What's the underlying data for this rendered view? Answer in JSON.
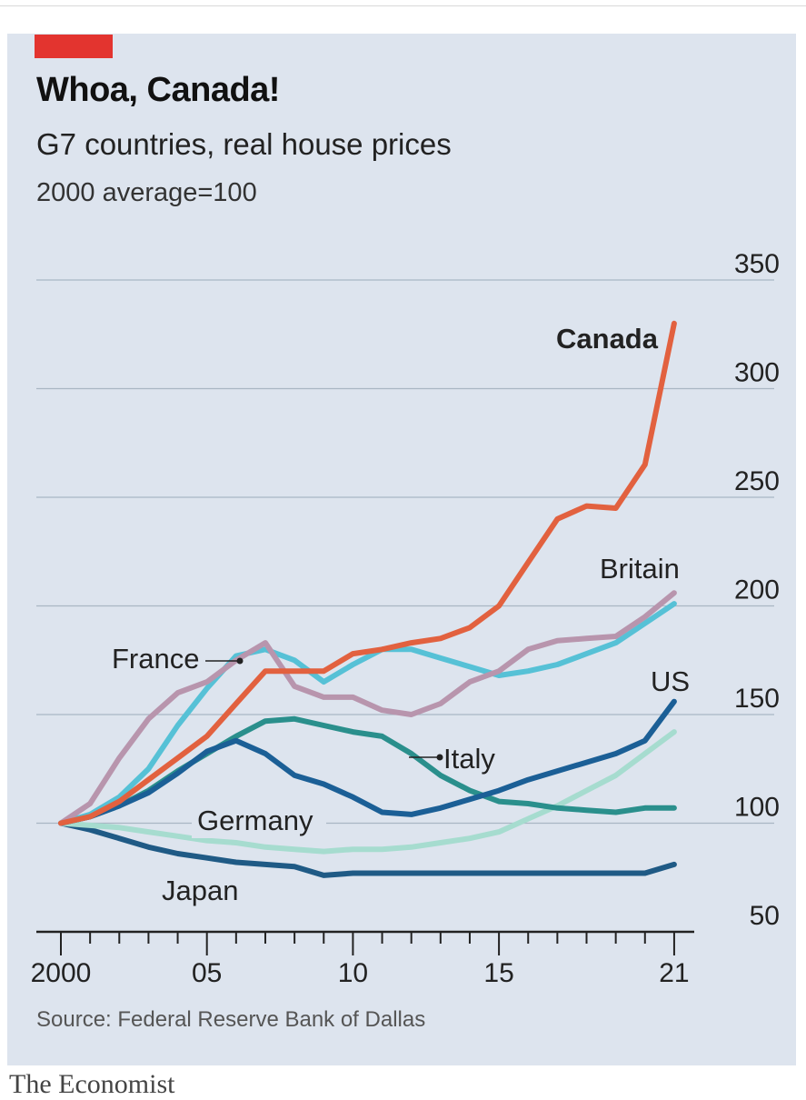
{
  "header": {
    "title": "Whoa, Canada!",
    "subtitle": "G7 countries, real house prices",
    "unit": "2000 average=100",
    "tag_color": "#e3342f"
  },
  "footer": {
    "source": "Source: Federal Reserve Bank of Dallas",
    "brand": "The Economist"
  },
  "chart_data": {
    "type": "line",
    "title": "Whoa, Canada!",
    "subtitle": "G7 countries, real house prices",
    "ylabel": "2000 average=100",
    "xlim": [
      2000,
      2021.5
    ],
    "ylim": [
      50,
      350
    ],
    "y_ticks": [
      50,
      100,
      150,
      200,
      250,
      300,
      350
    ],
    "x_ticks": [
      {
        "value": 2000,
        "label": "2000"
      },
      {
        "value": 2005,
        "label": "05"
      },
      {
        "value": 2010,
        "label": "10"
      },
      {
        "value": 2015,
        "label": "15"
      },
      {
        "value": 2021,
        "label": "21"
      }
    ],
    "grid": "horizontal",
    "y_axis_side": "right",
    "series": [
      {
        "name": "Japan",
        "color": "#1f5a85",
        "bold_label": false,
        "x": [
          2000,
          2001,
          2002,
          2003,
          2004,
          2005,
          2006,
          2007,
          2008,
          2009,
          2010,
          2011,
          2012,
          2013,
          2014,
          2015,
          2016,
          2017,
          2018,
          2019,
          2020,
          2021
        ],
        "values": [
          100,
          97,
          93,
          89,
          86,
          84,
          82,
          81,
          80,
          76,
          77,
          77,
          77,
          77,
          77,
          77,
          77,
          77,
          77,
          77,
          77,
          81
        ]
      },
      {
        "name": "Germany",
        "color": "#a6dccf",
        "bold_label": false,
        "x": [
          2000,
          2001,
          2002,
          2003,
          2004,
          2005,
          2006,
          2007,
          2008,
          2009,
          2010,
          2011,
          2012,
          2013,
          2014,
          2015,
          2016,
          2017,
          2018,
          2019,
          2020,
          2021
        ],
        "values": [
          100,
          99,
          98,
          96,
          94,
          92,
          91,
          89,
          88,
          87,
          88,
          88,
          89,
          91,
          93,
          96,
          102,
          108,
          115,
          122,
          132,
          142
        ]
      },
      {
        "name": "Italy",
        "color": "#2a8f8c",
        "bold_label": false,
        "x": [
          2000,
          2001,
          2002,
          2003,
          2004,
          2005,
          2006,
          2007,
          2008,
          2009,
          2010,
          2011,
          2012,
          2013,
          2014,
          2015,
          2016,
          2017,
          2018,
          2019,
          2020,
          2021
        ],
        "values": [
          100,
          103,
          108,
          115,
          124,
          132,
          140,
          147,
          148,
          145,
          142,
          140,
          132,
          122,
          115,
          110,
          109,
          107,
          106,
          105,
          107,
          107
        ]
      },
      {
        "name": "US",
        "color": "#1b5f96",
        "bold_label": false,
        "x": [
          2000,
          2001,
          2002,
          2003,
          2004,
          2005,
          2006,
          2007,
          2008,
          2009,
          2010,
          2011,
          2012,
          2013,
          2014,
          2015,
          2016,
          2017,
          2018,
          2019,
          2020,
          2021
        ],
        "values": [
          100,
          103,
          108,
          114,
          123,
          133,
          138,
          132,
          122,
          118,
          112,
          105,
          104,
          107,
          111,
          115,
          120,
          124,
          128,
          132,
          138,
          156
        ]
      },
      {
        "name": "France",
        "color": "#56c1d6",
        "bold_label": false,
        "x": [
          2000,
          2001,
          2002,
          2003,
          2004,
          2005,
          2006,
          2007,
          2008,
          2009,
          2010,
          2011,
          2012,
          2013,
          2014,
          2015,
          2016,
          2017,
          2018,
          2019,
          2020,
          2021
        ],
        "values": [
          100,
          104,
          112,
          125,
          145,
          162,
          177,
          180,
          175,
          165,
          173,
          180,
          180,
          176,
          172,
          168,
          170,
          173,
          178,
          183,
          192,
          201
        ]
      },
      {
        "name": "Britain",
        "color": "#b895ad",
        "bold_label": false,
        "x": [
          2000,
          2001,
          2002,
          2003,
          2004,
          2005,
          2006,
          2007,
          2008,
          2009,
          2010,
          2011,
          2012,
          2013,
          2014,
          2015,
          2016,
          2017,
          2018,
          2019,
          2020,
          2021
        ],
        "values": [
          100,
          109,
          130,
          148,
          160,
          165,
          175,
          183,
          163,
          158,
          158,
          152,
          150,
          155,
          165,
          170,
          180,
          184,
          185,
          186,
          195,
          206
        ]
      },
      {
        "name": "Canada",
        "color": "#e2613f",
        "bold_label": true,
        "x": [
          2000,
          2001,
          2002,
          2003,
          2004,
          2005,
          2006,
          2007,
          2008,
          2009,
          2010,
          2011,
          2012,
          2013,
          2014,
          2015,
          2016,
          2017,
          2018,
          2019,
          2020,
          2021
        ],
        "values": [
          100,
          103,
          110,
          120,
          130,
          140,
          155,
          170,
          170,
          170,
          178,
          180,
          183,
          185,
          190,
          200,
          220,
          240,
          246,
          245,
          265,
          330
        ]
      }
    ]
  }
}
